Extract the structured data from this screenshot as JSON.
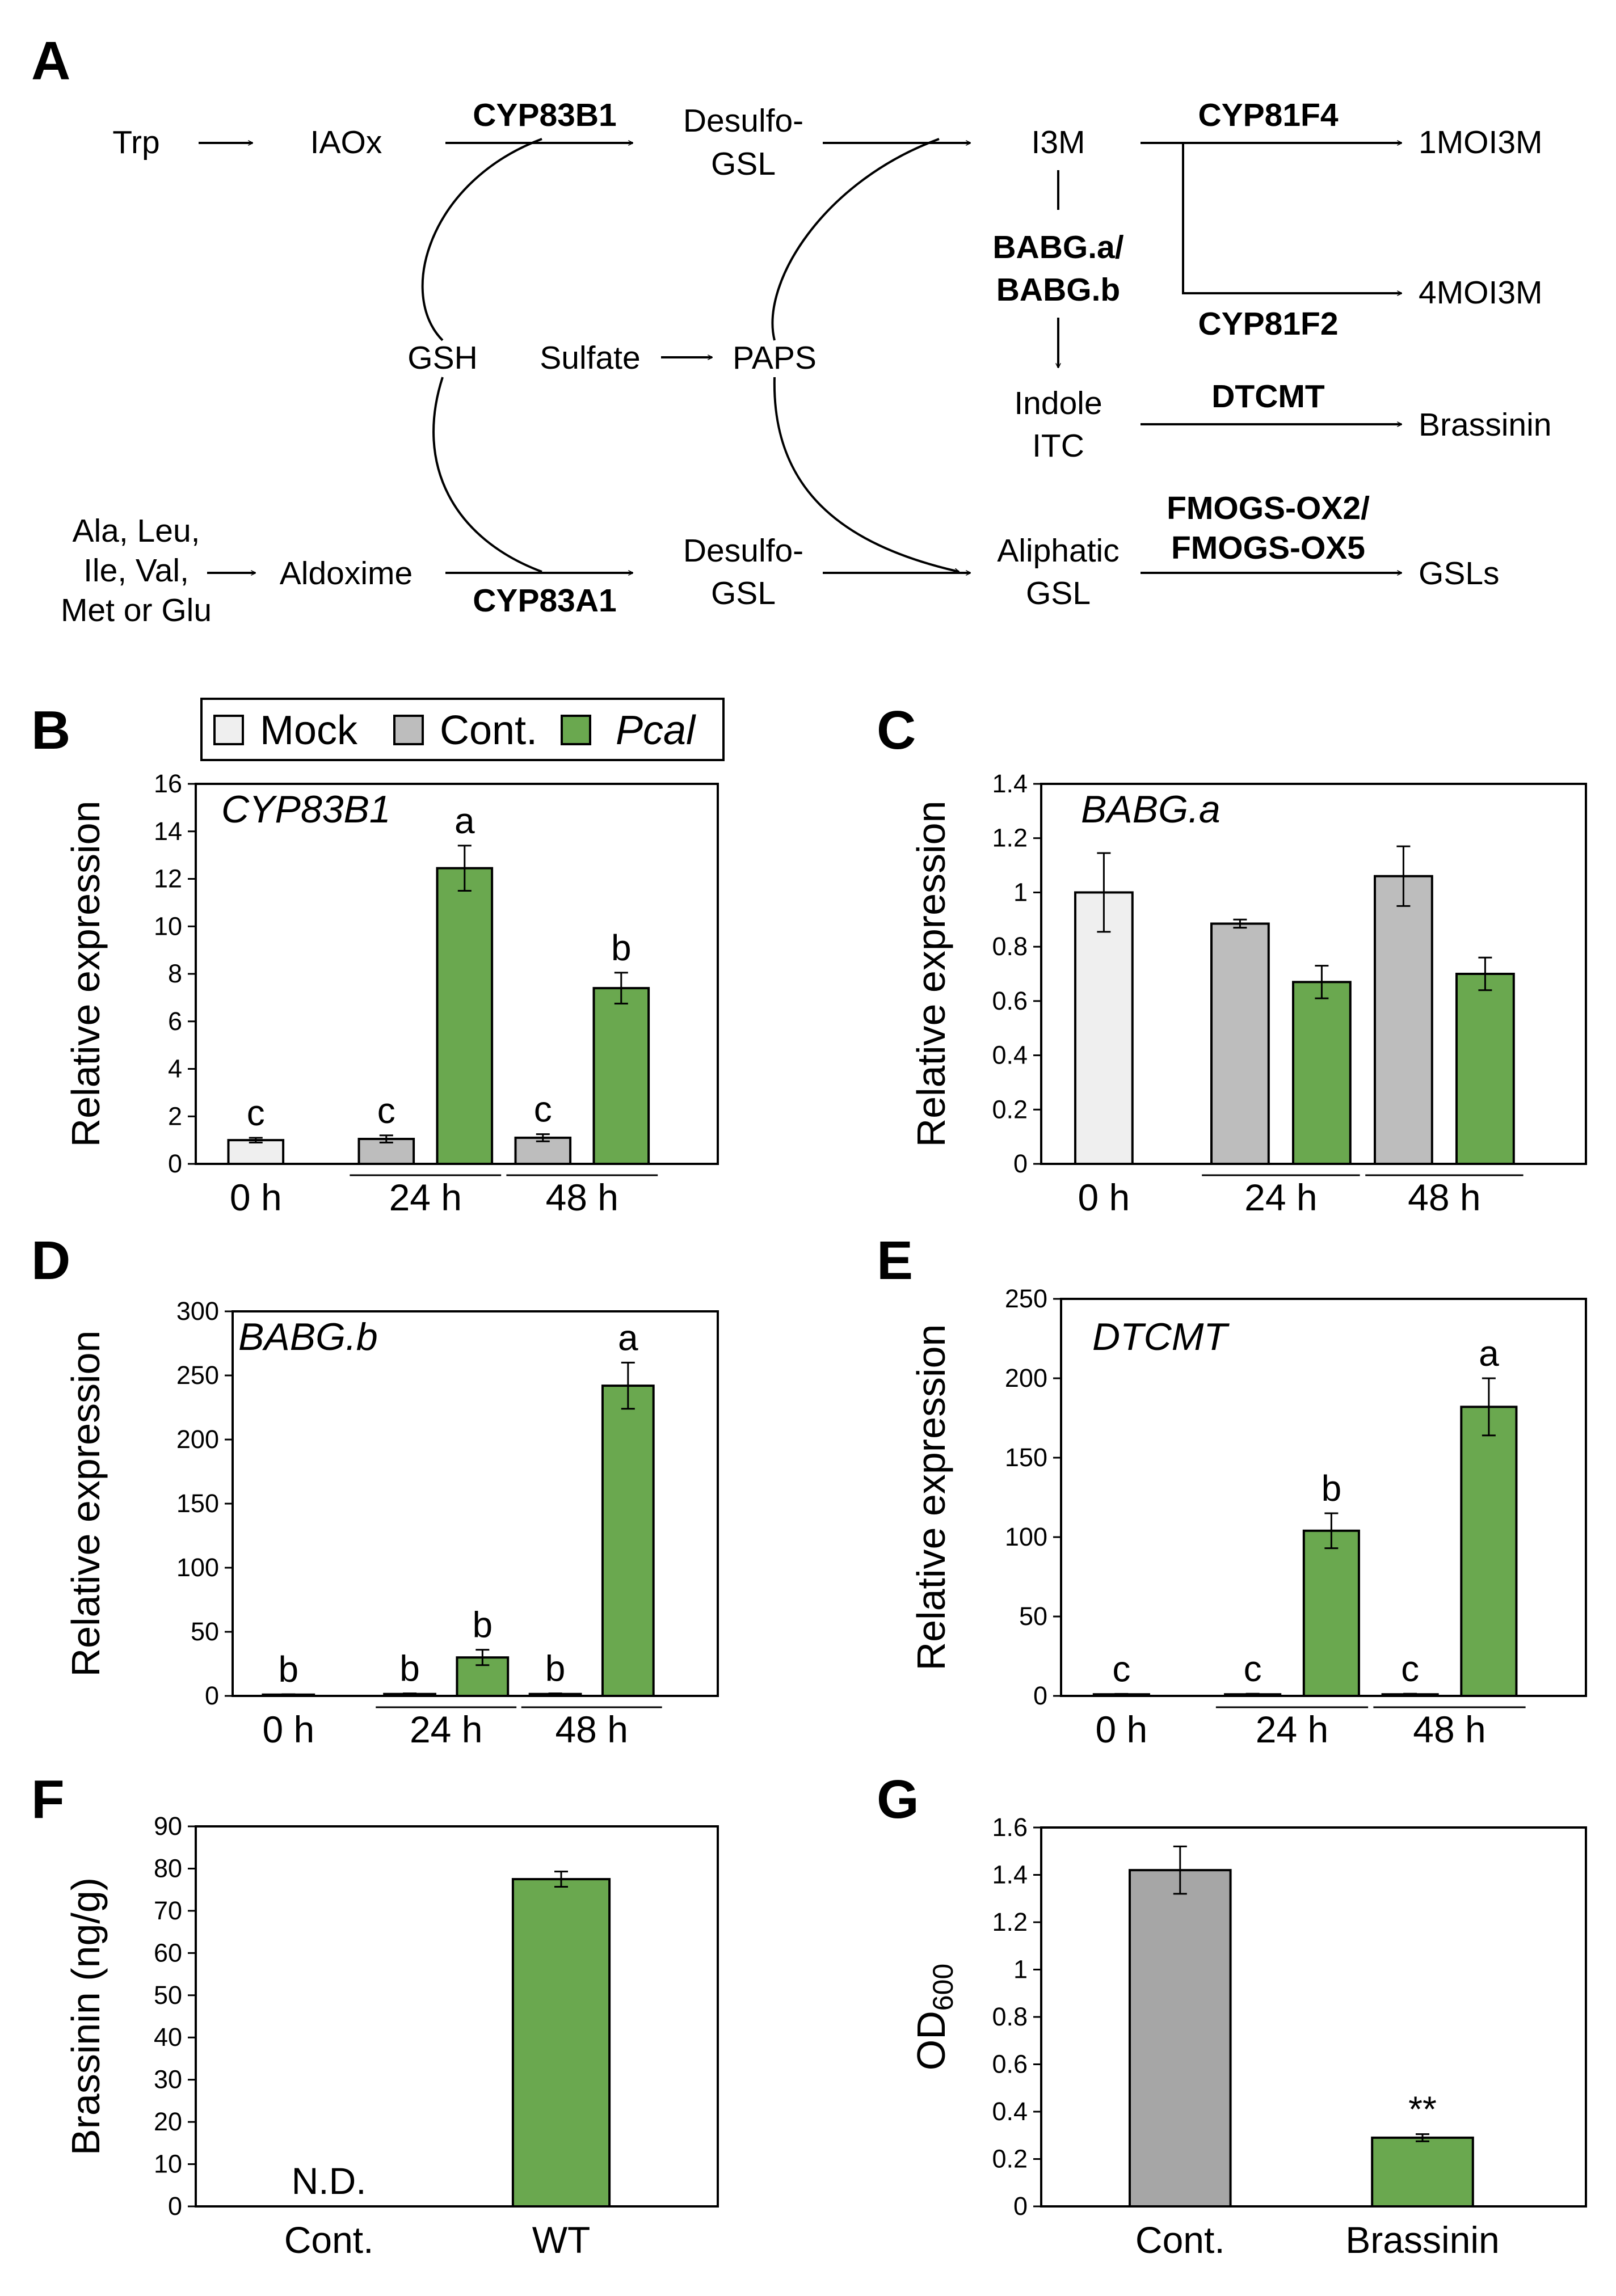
{
  "panel_labels": {
    "A": "A",
    "B": "B",
    "C": "C",
    "D": "D",
    "E": "E",
    "F": "F",
    "G": "G"
  },
  "pathway": {
    "nodes": {
      "trp": "Trp",
      "iaox": "IAOx",
      "desulfo1_l1": "Desulfo-",
      "desulfo1_l2": "GSL",
      "i3m": "I3M",
      "moi1": "1MOI3M",
      "moi4": "4MOI3M",
      "gsh": "GSH",
      "sulfate": "Sulfate",
      "paps": "PAPS",
      "indole_l1": "Indole",
      "indole_l2": "ITC",
      "brassinin": "Brassinin",
      "aa_l1": "Ala, Leu,",
      "aa_l2": "Ile, Val,",
      "aa_l3": "Met or Glu",
      "aldoxime": "Aldoxime",
      "desulfo2_l1": "Desulfo-",
      "desulfo2_l2": "GSL",
      "aliph_l1": "Aliphatic",
      "aliph_l2": "GSL",
      "gsls": "GSLs"
    },
    "enzymes": {
      "cyp83b1": "CYP83B1",
      "cyp81f4": "CYP81F4",
      "babg_l1": "BABG.a/",
      "babg_l2": "BABG.b",
      "cyp81f2": "CYP81F2",
      "dtcmt": "DTCMT",
      "cyp83a1": "CYP83A1",
      "fmo_l1": "FMOGS-OX2/",
      "fmo_l2": "FMOGS-OX5"
    }
  },
  "colors": {
    "mock": "#efefef",
    "cont": "#bdbdbd",
    "pcal": "#6aa84f",
    "gray_bar": "#a6a6a6"
  },
  "legend": {
    "mock": "Mock",
    "cont": "Cont.",
    "pcal": "Pcal"
  },
  "chart_data": [
    {
      "id": "B",
      "type": "bar",
      "gene": "CYP83B1",
      "ylabel": "Relative expression",
      "ylim": [
        0,
        16
      ],
      "yticks": [
        0,
        2,
        4,
        6,
        8,
        10,
        12,
        14,
        16
      ],
      "ytick_labels": [
        "0",
        "2",
        "4",
        "6",
        "8",
        "10",
        "12",
        "14",
        "16"
      ],
      "categories": [
        "0 h",
        "24 h",
        "48 h"
      ],
      "bars": [
        {
          "group": "0 h",
          "series": "Mock",
          "value": 1.0,
          "error": 0.1,
          "sig": "c"
        },
        {
          "group": "24 h",
          "series": "Cont.",
          "value": 1.05,
          "error": 0.15,
          "sig": "c"
        },
        {
          "group": "24 h",
          "series": "Pcal",
          "value": 12.45,
          "error": 0.95,
          "sig": "a"
        },
        {
          "group": "48 h",
          "series": "Cont.",
          "value": 1.1,
          "error": 0.15,
          "sig": "c"
        },
        {
          "group": "48 h",
          "series": "Pcal",
          "value": 7.4,
          "error": 0.65,
          "sig": "b"
        }
      ]
    },
    {
      "id": "C",
      "type": "bar",
      "gene": "BABG.a",
      "ylabel": "Relative expression",
      "ylim": [
        0,
        1.4
      ],
      "yticks": [
        0,
        0.2,
        0.4,
        0.6,
        0.8,
        1,
        1.2,
        1.4
      ],
      "ytick_labels": [
        "0",
        "0.2",
        "0.4",
        "0.6",
        "0.8",
        "1",
        "1.2",
        "1.4"
      ],
      "categories": [
        "0 h",
        "24 h",
        "48 h"
      ],
      "bars": [
        {
          "group": "0 h",
          "series": "Mock",
          "value": 1.0,
          "error": 0.145,
          "sig": ""
        },
        {
          "group": "24 h",
          "series": "Cont.",
          "value": 0.885,
          "error": 0.015,
          "sig": ""
        },
        {
          "group": "24 h",
          "series": "Pcal",
          "value": 0.67,
          "error": 0.06,
          "sig": ""
        },
        {
          "group": "48 h",
          "series": "Cont.",
          "value": 1.06,
          "error": 0.11,
          "sig": ""
        },
        {
          "group": "48 h",
          "series": "Pcal",
          "value": 0.7,
          "error": 0.06,
          "sig": ""
        }
      ]
    },
    {
      "id": "D",
      "type": "bar",
      "gene": "BABG.b",
      "ylabel": "Relative expression",
      "ylim": [
        0,
        300
      ],
      "yticks": [
        0,
        50,
        100,
        150,
        200,
        250,
        300
      ],
      "ytick_labels": [
        "0",
        "50",
        "100",
        "150",
        "200",
        "250",
        "300"
      ],
      "categories": [
        "0 h",
        "24 h",
        "48 h"
      ],
      "bars": [
        {
          "group": "0 h",
          "series": "Mock",
          "value": 1,
          "error": 0.3,
          "sig": "b"
        },
        {
          "group": "24 h",
          "series": "Cont.",
          "value": 1.5,
          "error": 0.5,
          "sig": "b"
        },
        {
          "group": "24 h",
          "series": "Pcal",
          "value": 30,
          "error": 6,
          "sig": "b"
        },
        {
          "group": "48 h",
          "series": "Cont.",
          "value": 1.5,
          "error": 0.5,
          "sig": "b"
        },
        {
          "group": "48 h",
          "series": "Pcal",
          "value": 242,
          "error": 18,
          "sig": "a"
        }
      ]
    },
    {
      "id": "E",
      "type": "bar",
      "gene": "DTCMT",
      "ylabel": "Relative expression",
      "ylim": [
        0,
        250
      ],
      "yticks": [
        0,
        50,
        100,
        150,
        200,
        250
      ],
      "ytick_labels": [
        "0",
        "50",
        "100",
        "150",
        "200",
        "250"
      ],
      "categories": [
        "0 h",
        "24 h",
        "48 h"
      ],
      "bars": [
        {
          "group": "0 h",
          "series": "Mock",
          "value": 1,
          "error": 0.3,
          "sig": "c"
        },
        {
          "group": "24 h",
          "series": "Cont.",
          "value": 1,
          "error": 0.4,
          "sig": "c"
        },
        {
          "group": "24 h",
          "series": "Pcal",
          "value": 104,
          "error": 11,
          "sig": "b"
        },
        {
          "group": "48 h",
          "series": "Cont.",
          "value": 1,
          "error": 0.4,
          "sig": "c"
        },
        {
          "group": "48 h",
          "series": "Pcal",
          "value": 182,
          "error": 18,
          "sig": "a"
        }
      ]
    },
    {
      "id": "F",
      "type": "bar",
      "gene": "",
      "ylabel": "Brassinin (ng/g)",
      "ylim": [
        0,
        90
      ],
      "yticks": [
        0,
        10,
        20,
        30,
        40,
        50,
        60,
        70,
        80,
        90
      ],
      "ytick_labels": [
        "0",
        "10",
        "20",
        "30",
        "40",
        "50",
        "60",
        "70",
        "80",
        "90"
      ],
      "categories": [
        "Cont.",
        "WT"
      ],
      "bars": [
        {
          "group": "Cont.",
          "value": 0,
          "error": 0,
          "sig": "",
          "note": "N.D."
        },
        {
          "group": "WT",
          "value": 77.5,
          "error": 1.8,
          "sig": ""
        }
      ]
    },
    {
      "id": "G",
      "type": "bar",
      "gene": "",
      "ylabel": "OD",
      "ylabel_sub": "600",
      "ylim": [
        0,
        1.6
      ],
      "yticks": [
        0,
        0.2,
        0.4,
        0.6,
        0.8,
        1,
        1.2,
        1.4,
        1.6
      ],
      "ytick_labels": [
        "0",
        "0.2",
        "0.4",
        "0.6",
        "0.8",
        "1",
        "1.2",
        "1.4",
        "1.6"
      ],
      "categories": [
        "Cont.",
        "Brassinin"
      ],
      "bars": [
        {
          "group": "Cont.",
          "value": 1.42,
          "error": 0.1,
          "sig": ""
        },
        {
          "group": "Brassinin",
          "value": 0.29,
          "error": 0.015,
          "sig": "**"
        }
      ]
    }
  ]
}
